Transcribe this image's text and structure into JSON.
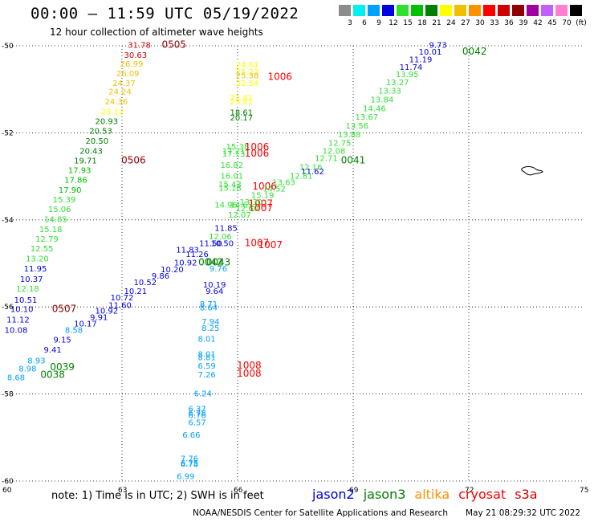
{
  "header": {
    "title": "00:00 – 11:59 UTC 05/19/2022",
    "subtitle": "12 hour collection of altimeter wave heights"
  },
  "color_scale": {
    "labels": [
      "3",
      "6",
      "9",
      "12",
      "15",
      "18",
      "21",
      "24",
      "27",
      "30",
      "33",
      "36",
      "39",
      "42",
      "45",
      "70",
      "(ft)"
    ],
    "colors": [
      "#8c8c8c",
      "#00f0f0",
      "#00a0ff",
      "#0000e0",
      "#30e030",
      "#00c000",
      "#008000",
      "#ffff00",
      "#f0c000",
      "#ff9000",
      "#ff0000",
      "#d00000",
      "#900000",
      "#a000a0",
      "#c060ff",
      "#ff80d0",
      "#000000"
    ]
  },
  "map": {
    "x_ticks": [
      "60",
      "63",
      "66",
      "69",
      "72",
      "75"
    ],
    "y_ticks": [
      "-50",
      "-52",
      "-54",
      "-56",
      "-58",
      "-60"
    ],
    "x_range": [
      60,
      75
    ],
    "y_range": [
      -60,
      -50
    ]
  },
  "labels": [
    {
      "t": "31.78",
      "c": "#d00000",
      "lon": 63.45,
      "lat": -50.05
    },
    {
      "t": "0505",
      "c": "#900000",
      "lon": 64.35,
      "lat": -50.05
    },
    {
      "t": "30.63",
      "c": "#d00000",
      "lon": 63.35,
      "lat": -50.28
    },
    {
      "t": "26.99",
      "c": "#f0c000",
      "lon": 63.25,
      "lat": -50.48
    },
    {
      "t": "26.09",
      "c": "#f0c000",
      "lon": 63.15,
      "lat": -50.7
    },
    {
      "t": "24.37",
      "c": "#f0c000",
      "lon": 63.05,
      "lat": -50.92
    },
    {
      "t": "24.24",
      "c": "#f0c000",
      "lon": 62.95,
      "lat": -51.12
    },
    {
      "t": "24.36",
      "c": "#f0c000",
      "lon": 62.85,
      "lat": -51.35
    },
    {
      "t": "23.12",
      "c": "#ffff00",
      "lon": 62.75,
      "lat": -51.58
    },
    {
      "t": "20.93",
      "c": "#008000",
      "lon": 62.6,
      "lat": -51.8
    },
    {
      "t": "20.53",
      "c": "#008000",
      "lon": 62.45,
      "lat": -52.02
    },
    {
      "t": "20.50",
      "c": "#008000",
      "lon": 62.35,
      "lat": -52.25
    },
    {
      "t": "20.43",
      "c": "#008000",
      "lon": 62.2,
      "lat": -52.48
    },
    {
      "t": "0506",
      "c": "#900000",
      "lon": 63.3,
      "lat": -52.7
    },
    {
      "t": "19.71",
      "c": "#008000",
      "lon": 62.05,
      "lat": -52.7
    },
    {
      "t": "17.93",
      "c": "#00c000",
      "lon": 61.9,
      "lat": -52.92
    },
    {
      "t": "17.86",
      "c": "#00c000",
      "lon": 61.8,
      "lat": -53.15
    },
    {
      "t": "17.90",
      "c": "#00c000",
      "lon": 61.65,
      "lat": -53.38
    },
    {
      "t": "15.39",
      "c": "#30e030",
      "lon": 61.5,
      "lat": -53.6
    },
    {
      "t": "15.06",
      "c": "#30e030",
      "lon": 61.38,
      "lat": -53.82
    },
    {
      "t": "14.85",
      "c": "#30e030",
      "lon": 61.28,
      "lat": -54.05
    },
    {
      "t": "15.18",
      "c": "#30e030",
      "lon": 61.15,
      "lat": -54.28
    },
    {
      "t": "12.79",
      "c": "#30e030",
      "lon": 61.05,
      "lat": -54.5
    },
    {
      "t": "12.55",
      "c": "#30e030",
      "lon": 60.92,
      "lat": -54.72
    },
    {
      "t": "13.20",
      "c": "#30e030",
      "lon": 60.8,
      "lat": -54.95
    },
    {
      "t": "11.95",
      "c": "#0000e0",
      "lon": 60.75,
      "lat": -55.18
    },
    {
      "t": "10.37",
      "c": "#0000e0",
      "lon": 60.65,
      "lat": -55.42
    },
    {
      "t": "12.18",
      "c": "#30e030",
      "lon": 60.55,
      "lat": -55.65
    },
    {
      "t": "10.51",
      "c": "#0000e0",
      "lon": 60.5,
      "lat": -55.9
    },
    {
      "t": "10.10",
      "c": "#0000e0",
      "lon": 60.4,
      "lat": -56.12
    },
    {
      "t": "0507",
      "c": "#900000",
      "lon": 61.5,
      "lat": -56.12
    },
    {
      "t": "11.12",
      "c": "#0000e0",
      "lon": 60.3,
      "lat": -56.36
    },
    {
      "t": "10.08",
      "c": "#0000e0",
      "lon": 60.25,
      "lat": -56.6
    },
    {
      "t": "8.68",
      "c": "#00a0ff",
      "lon": 60.25,
      "lat": -57.68
    },
    {
      "t": "8.98",
      "c": "#00a0ff",
      "lon": 60.55,
      "lat": -57.48
    },
    {
      "t": "8.93",
      "c": "#00a0ff",
      "lon": 60.78,
      "lat": -57.3
    },
    {
      "t": "0039",
      "c": "#008000",
      "lon": 61.45,
      "lat": -57.45
    },
    {
      "t": "0038",
      "c": "#008000",
      "lon": 61.2,
      "lat": -57.63
    },
    {
      "t": "9.41",
      "c": "#0000e0",
      "lon": 61.2,
      "lat": -57.05
    },
    {
      "t": "9.15",
      "c": "#0000e0",
      "lon": 61.45,
      "lat": -56.82
    },
    {
      "t": "8.58",
      "c": "#00a0ff",
      "lon": 61.75,
      "lat": -56.6
    },
    {
      "t": "10.17",
      "c": "#0000e0",
      "lon": 62.05,
      "lat": -56.45
    },
    {
      "t": "9.91",
      "c": "#0000e0",
      "lon": 62.4,
      "lat": -56.3
    },
    {
      "t": "10.92",
      "c": "#0000e0",
      "lon": 62.6,
      "lat": -56.15
    },
    {
      "t": "11.60",
      "c": "#0000e0",
      "lon": 62.95,
      "lat": -56.02
    },
    {
      "t": "10.72",
      "c": "#0000e0",
      "lon": 63.0,
      "lat": -55.85
    },
    {
      "t": "10.21",
      "c": "#0000e0",
      "lon": 63.35,
      "lat": -55.7
    },
    {
      "t": "10.52",
      "c": "#0000e0",
      "lon": 63.6,
      "lat": -55.5
    },
    {
      "t": "9.86",
      "c": "#0000e0",
      "lon": 64.0,
      "lat": -55.35
    },
    {
      "t": "10.20",
      "c": "#0000e0",
      "lon": 64.3,
      "lat": -55.2
    },
    {
      "t": "10.92",
      "c": "#0000e0",
      "lon": 64.65,
      "lat": -55.05
    },
    {
      "t": "11.26",
      "c": "#0000e0",
      "lon": 64.95,
      "lat": -54.85
    },
    {
      "t": "11.83",
      "c": "#0000e0",
      "lon": 64.7,
      "lat": -54.75
    },
    {
      "t": "11.50",
      "c": "#0000e0",
      "lon": 65.3,
      "lat": -54.6
    },
    {
      "t": "10.50",
      "c": "#0000e0",
      "lon": 65.6,
      "lat": -54.6
    },
    {
      "t": "11.85",
      "c": "#0000e0",
      "lon": 65.7,
      "lat": -54.25
    },
    {
      "t": "12.06",
      "c": "#30e030",
      "lon": 65.55,
      "lat": -54.45
    },
    {
      "t": "0043",
      "c": "#008000",
      "lon": 65.5,
      "lat": -55.05
    },
    {
      "t": "0042",
      "c": "#008000",
      "lon": 65.3,
      "lat": -55.05
    },
    {
      "t": "9.76",
      "c": "#00a0ff",
      "lon": 65.5,
      "lat": -55.18
    },
    {
      "t": "10.19",
      "c": "#0000e0",
      "lon": 65.4,
      "lat": -55.55
    },
    {
      "t": "9.64",
      "c": "#0000e0",
      "lon": 65.4,
      "lat": -55.7
    },
    {
      "t": "1007",
      "c": "#ff0000",
      "lon": 66.5,
      "lat": -54.6
    },
    {
      "t": "8.71",
      "c": "#00a0ff",
      "lon": 65.25,
      "lat": -56.0
    },
    {
      "t": "8.64",
      "c": "#00a0ff",
      "lon": 65.25,
      "lat": -56.08
    },
    {
      "t": "7.94",
      "c": "#00a0ff",
      "lon": 65.3,
      "lat": -56.4
    },
    {
      "t": "8.25",
      "c": "#00a0ff",
      "lon": 65.3,
      "lat": -56.55
    },
    {
      "t": "8.01",
      "c": "#00a0ff",
      "lon": 65.2,
      "lat": -56.8
    },
    {
      "t": "8.01",
      "c": "#00a0ff",
      "lon": 65.2,
      "lat": -57.15
    },
    {
      "t": "8.81",
      "c": "#00a0ff",
      "lon": 65.2,
      "lat": -57.22
    },
    {
      "t": "6.59",
      "c": "#00a0ff",
      "lon": 65.2,
      "lat": -57.42
    },
    {
      "t": "7.26",
      "c": "#00a0ff",
      "lon": 65.2,
      "lat": -57.62
    },
    {
      "t": "1008",
      "c": "#ff0000",
      "lon": 66.3,
      "lat": -57.42
    },
    {
      "t": "1008",
      "c": "#ff0000",
      "lon": 66.3,
      "lat": -57.6
    },
    {
      "t": "6.24",
      "c": "#00a0ff",
      "lon": 65.1,
      "lat": -58.05
    },
    {
      "t": "6.37",
      "c": "#00a0ff",
      "lon": 64.95,
      "lat": -58.4
    },
    {
      "t": "6.78",
      "c": "#00a0ff",
      "lon": 64.95,
      "lat": -58.5
    },
    {
      "t": "6.76",
      "c": "#00a0ff",
      "lon": 64.95,
      "lat": -58.55
    },
    {
      "t": "6.57",
      "c": "#00a0ff",
      "lon": 64.95,
      "lat": -58.72
    },
    {
      "t": "6.66",
      "c": "#00a0ff",
      "lon": 64.8,
      "lat": -59.0
    },
    {
      "t": "7.76",
      "c": "#00a0ff",
      "lon": 64.75,
      "lat": -59.55
    },
    {
      "t": "6.75",
      "c": "#00a0ff",
      "lon": 64.75,
      "lat": -59.65
    },
    {
      "t": "6.78",
      "c": "#00a0ff",
      "lon": 64.75,
      "lat": -59.68
    },
    {
      "t": "6.99",
      "c": "#00a0ff",
      "lon": 64.65,
      "lat": -59.95
    },
    {
      "t": "24.61",
      "c": "#ffff00",
      "lon": 66.25,
      "lat": -50.5
    },
    {
      "t": "25.23",
      "c": "#ffff00",
      "lon": 66.25,
      "lat": -50.66
    },
    {
      "t": "25.38",
      "c": "#f0c000",
      "lon": 66.25,
      "lat": -50.75
    },
    {
      "t": "22.54",
      "c": "#ffff00",
      "lon": 66.25,
      "lat": -50.92
    },
    {
      "t": "1006",
      "c": "#ff0000",
      "lon": 67.1,
      "lat": -50.78
    },
    {
      "t": "22.41",
      "c": "#ffff00",
      "lon": 66.1,
      "lat": -51.25
    },
    {
      "t": "23.61",
      "c": "#ffff00",
      "lon": 66.1,
      "lat": -51.35
    },
    {
      "t": "18.61",
      "c": "#008000",
      "lon": 66.1,
      "lat": -51.6
    },
    {
      "t": "20.17",
      "c": "#008000",
      "lon": 66.1,
      "lat": -51.72
    },
    {
      "t": "15.38",
      "c": "#30e030",
      "lon": 66.0,
      "lat": -52.38
    },
    {
      "t": "1006",
      "c": "#ff0000",
      "lon": 66.5,
      "lat": -52.4
    },
    {
      "t": "17.21",
      "c": "#30e030",
      "lon": 65.9,
      "lat": -52.48
    },
    {
      "t": "17.13",
      "c": "#30e030",
      "lon": 65.9,
      "lat": -52.55
    },
    {
      "t": "1006",
      "c": "#ff0000",
      "lon": 66.5,
      "lat": -52.55
    },
    {
      "t": "16.82",
      "c": "#30e030",
      "lon": 65.85,
      "lat": -52.8
    },
    {
      "t": "16.01",
      "c": "#30e030",
      "lon": 65.85,
      "lat": -53.05
    },
    {
      "t": "15.43",
      "c": "#30e030",
      "lon": 65.8,
      "lat": -53.25
    },
    {
      "t": "15.18",
      "c": "#30e030",
      "lon": 65.8,
      "lat": -53.33
    },
    {
      "t": "1006",
      "c": "#ff0000",
      "lon": 66.7,
      "lat": -53.3
    },
    {
      "t": "14.96",
      "c": "#30e030",
      "lon": 65.7,
      "lat": -53.72
    },
    {
      "t": "14.63",
      "c": "#30e030",
      "lon": 66.1,
      "lat": -53.72
    },
    {
      "t": "1007",
      "c": "#ff0000",
      "lon": 66.6,
      "lat": -53.7
    },
    {
      "t": "1007",
      "c": "#ff0000",
      "lon": 66.6,
      "lat": -53.8
    },
    {
      "t": "9.73",
      "c": "#0000e0",
      "lon": 71.2,
      "lat": -50.05
    },
    {
      "t": "10.01",
      "c": "#0000e0",
      "lon": 71.0,
      "lat": -50.2
    },
    {
      "t": "0042",
      "c": "#008000",
      "lon": 72.15,
      "lat": -50.2
    },
    {
      "t": "11.19",
      "c": "#0000e0",
      "lon": 70.75,
      "lat": -50.38
    },
    {
      "t": "11.74",
      "c": "#0000e0",
      "lon": 70.5,
      "lat": -50.55
    },
    {
      "t": "13.95",
      "c": "#30e030",
      "lon": 70.4,
      "lat": -50.72
    },
    {
      "t": "13.27",
      "c": "#30e030",
      "lon": 70.15,
      "lat": -50.9
    },
    {
      "t": "13.33",
      "c": "#30e030",
      "lon": 69.95,
      "lat": -51.1
    },
    {
      "t": "13.84",
      "c": "#30e030",
      "lon": 69.75,
      "lat": -51.3
    },
    {
      "t": "14.46",
      "c": "#30e030",
      "lon": 69.55,
      "lat": -51.5
    },
    {
      "t": "13.67",
      "c": "#30e030",
      "lon": 69.35,
      "lat": -51.7
    },
    {
      "t": "13.56",
      "c": "#30e030",
      "lon": 69.1,
      "lat": -51.9
    },
    {
      "t": "13.88",
      "c": "#30e030",
      "lon": 68.9,
      "lat": -52.1
    },
    {
      "t": "12.75",
      "c": "#30e030",
      "lon": 68.65,
      "lat": -52.3
    },
    {
      "t": "12.08",
      "c": "#30e030",
      "lon": 68.5,
      "lat": -52.48
    },
    {
      "t": "12.71",
      "c": "#30e030",
      "lon": 68.3,
      "lat": -52.65
    },
    {
      "t": "12.16",
      "c": "#30e030",
      "lon": 67.9,
      "lat": -52.85
    },
    {
      "t": "0041",
      "c": "#008000",
      "lon": 69.0,
      "lat": -52.7
    },
    {
      "t": "11.62",
      "c": "#0000e0",
      "lon": 67.95,
      "lat": -52.95
    },
    {
      "t": "12.81",
      "c": "#30e030",
      "lon": 67.65,
      "lat": -53.05
    },
    {
      "t": "13.63",
      "c": "#30e030",
      "lon": 67.2,
      "lat": -53.2
    },
    {
      "t": "14.52",
      "c": "#30e030",
      "lon": 66.95,
      "lat": -53.35
    },
    {
      "t": "15.19",
      "c": "#30e030",
      "lon": 66.65,
      "lat": -53.5
    },
    {
      "t": "13.30",
      "c": "#30e030",
      "lon": 66.35,
      "lat": -53.65
    },
    {
      "t": "12.60",
      "c": "#30e030",
      "lon": 66.25,
      "lat": -53.8
    },
    {
      "t": "12.07",
      "c": "#30e030",
      "lon": 66.05,
      "lat": -53.95
    },
    {
      "t": "1007",
      "c": "#ff0000",
      "lon": 66.85,
      "lat": -54.65
    }
  ],
  "footer": {
    "note": "note:  1) Time is in UTC;  2) SWH is in feet",
    "satellites": [
      {
        "name": "jason2",
        "color": "#0000e0"
      },
      {
        "name": "jason3",
        "color": "#008000"
      },
      {
        "name": "altika",
        "color": "#ff9000"
      },
      {
        "name": "cryosat",
        "color": "#ff0000"
      },
      {
        "name": "s3a",
        "color": "#d00000"
      }
    ],
    "credit": "NOAA/NESDIS Center for Satellite Applications and Research",
    "timestamp": "May 21 08:29:32 UTC 2022"
  }
}
